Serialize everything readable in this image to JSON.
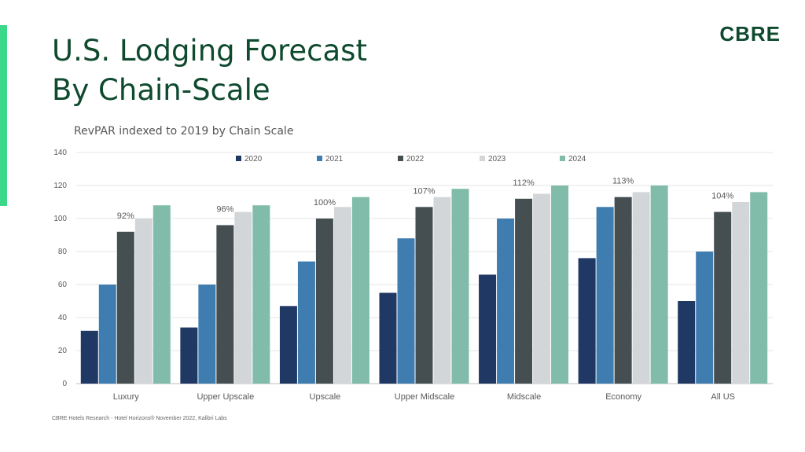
{
  "header": {
    "title_line1": "U.S. Lodging Forecast",
    "title_line2": "By Chain-Scale",
    "logo": "CBRE",
    "accent_color": "#3bd88a",
    "title_color": "#0f4a2f"
  },
  "footer": {
    "source": "CBRE Hotels Research - Hotel Horizons® November 2022, Kalibri Labs"
  },
  "chart_data": {
    "type": "bar",
    "title": "RevPAR  indexed to 2019 by Chain Scale",
    "xlabel": "",
    "ylabel": "",
    "ylim": [
      0,
      140
    ],
    "yticks": [
      0,
      20,
      40,
      60,
      80,
      100,
      120,
      140
    ],
    "grid": true,
    "legend_position": "top",
    "categories": [
      "Luxury",
      "Upper Upscale",
      "Upscale",
      "Upper Midscale",
      "Midscale",
      "Economy",
      "All US"
    ],
    "series": [
      {
        "name": "2020",
        "color": "#1f3864",
        "values": [
          32,
          34,
          47,
          55,
          66,
          76,
          50
        ]
      },
      {
        "name": "2021",
        "color": "#3f7cb0",
        "values": [
          60,
          60,
          74,
          88,
          100,
          107,
          80
        ]
      },
      {
        "name": "2022",
        "color": "#454f52",
        "values": [
          92,
          96,
          100,
          107,
          112,
          113,
          104
        ]
      },
      {
        "name": "2023",
        "color": "#d3d6d8",
        "values": [
          100,
          104,
          107,
          113,
          115,
          116,
          110
        ]
      },
      {
        "name": "2024",
        "color": "#80bca9",
        "values": [
          108,
          108,
          113,
          118,
          120,
          120,
          116
        ]
      }
    ],
    "annotations": [
      {
        "category": "Luxury",
        "series": "2022",
        "text": "92%"
      },
      {
        "category": "Upper Upscale",
        "series": "2022",
        "text": "96%"
      },
      {
        "category": "Upscale",
        "series": "2022",
        "text": "100%"
      },
      {
        "category": "Upper Midscale",
        "series": "2022",
        "text": "107%"
      },
      {
        "category": "Midscale",
        "series": "2022",
        "text": "112%"
      },
      {
        "category": "Economy",
        "series": "2022",
        "text": "113%"
      },
      {
        "category": "All US",
        "series": "2022",
        "text": "104%"
      }
    ]
  }
}
